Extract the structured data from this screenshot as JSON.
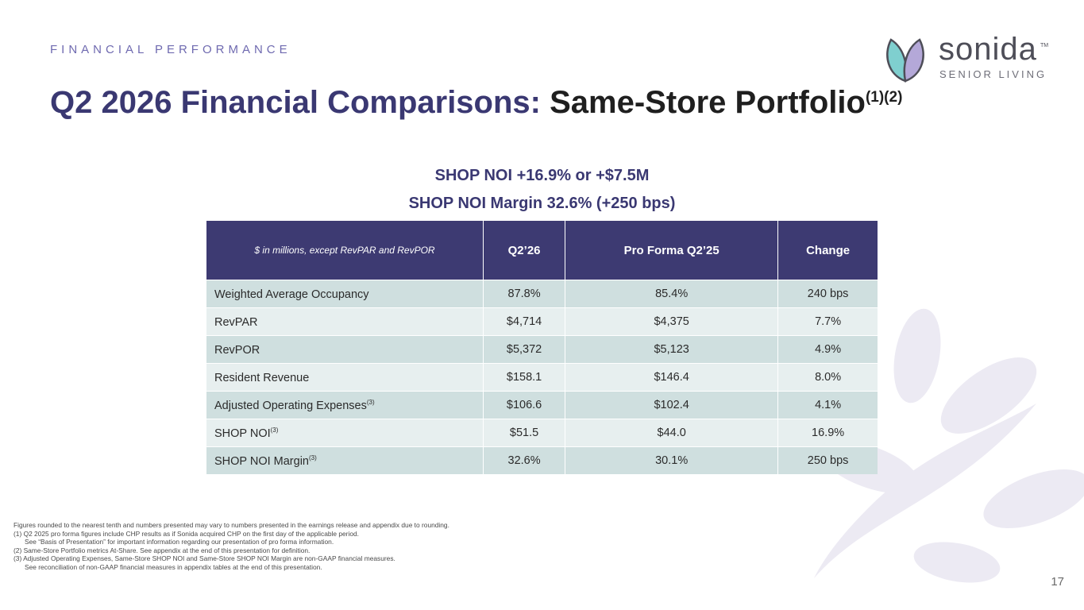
{
  "header": {
    "kicker": "FINANCIAL PERFORMANCE",
    "title_part1": "Q2 2026 Financial Comparisons: ",
    "title_part2": "Same-Store Portfolio",
    "title_superscript": "(1)(2)"
  },
  "logo": {
    "name": "sonida",
    "trademark": "TM",
    "tagline": "SENIOR LIVING"
  },
  "headlines": {
    "line1": "SHOP NOI +16.9% or +$7.5M",
    "line2": "SHOP NOI Margin 32.6% (+250 bps)"
  },
  "table": {
    "headers": [
      "$ in millions, except RevPAR and RevPOR",
      "Q2’26",
      "Pro Forma Q2’25",
      "Change"
    ],
    "rows": [
      {
        "label": "Weighted Average Occupancy",
        "sup": "",
        "q2_26": "87.8%",
        "pro_forma_q2_25": "85.4%",
        "change": "240 bps"
      },
      {
        "label": "RevPAR",
        "sup": "",
        "q2_26": "$4,714",
        "pro_forma_q2_25": "$4,375",
        "change": "7.7%"
      },
      {
        "label": "RevPOR",
        "sup": "",
        "q2_26": "$5,372",
        "pro_forma_q2_25": "$5,123",
        "change": "4.9%"
      },
      {
        "label": "Resident Revenue",
        "sup": "",
        "q2_26": "$158.1",
        "pro_forma_q2_25": "$146.4",
        "change": "8.0%"
      },
      {
        "label": "Adjusted Operating Expenses",
        "sup": "(3)",
        "q2_26": "$106.6",
        "pro_forma_q2_25": "$102.4",
        "change": "4.1%"
      },
      {
        "label": "SHOP NOI",
        "sup": "(3)",
        "q2_26": "$51.5",
        "pro_forma_q2_25": "$44.0",
        "change": "16.9%"
      },
      {
        "label": "SHOP NOI Margin",
        "sup": "(3)",
        "q2_26": "32.6%",
        "pro_forma_q2_25": "30.1%",
        "change": "250 bps"
      }
    ]
  },
  "footnotes": {
    "intro": "Figures rounded to the nearest tenth and numbers presented may vary to numbers presented in the earnings release and appendix due to rounding.",
    "note1": "(1) Q2 2025 pro forma figures include CHP results as if Sonida acquired CHP on the first day of the applicable period.",
    "note1b": "See “Basis of Presentation” for important information regarding our presentation of pro forma information.",
    "note2": "(2) Same-Store Portfolio metrics At-Share. See appendix at the end of this presentation for definition.",
    "note3": "(3) Adjusted Operating Expenses, Same-Store SHOP NOI and Same-Store SHOP NOI Margin are non-GAAP financial measures.",
    "note3b": "See reconciliation of non-GAAP financial measures in appendix tables at the end of this presentation."
  },
  "page_number": "17",
  "colors": {
    "brand_navy": "#3a3872",
    "table_header": "#3d3a72",
    "row_dark": "#cfdfdf",
    "row_light": "#e7efef",
    "kicker": "#6f6ab0",
    "logo_teal": "#7fcfcf",
    "logo_lavender": "#b4a8d8"
  }
}
